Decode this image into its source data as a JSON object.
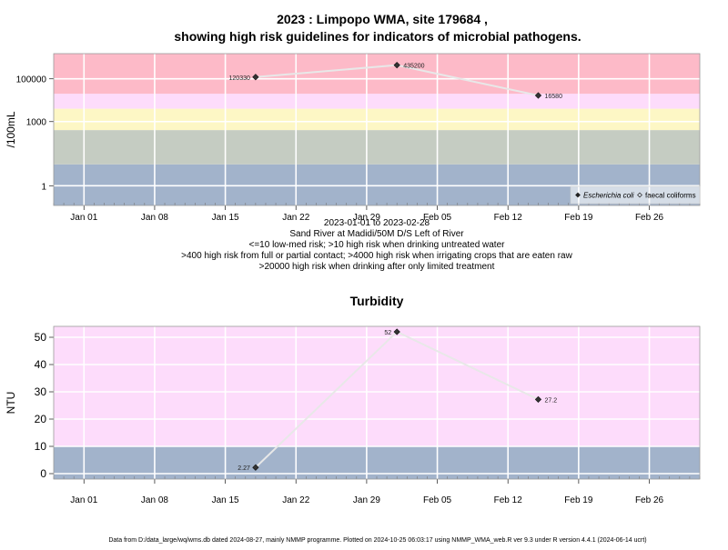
{
  "title_line1": "2023 : Limpopo WMA, site 179684 ,",
  "title_line2": "showing high risk guidelines for indicators of microbial pathogens.",
  "chart_data": [
    {
      "type": "line",
      "title": "",
      "ylabel": "/100mL",
      "yscale": "log10",
      "ylim": [
        0.12,
        1500000
      ],
      "yticks": [
        1,
        1000,
        100000
      ],
      "ytick_labels": [
        "1",
        "1000",
        "100000"
      ],
      "xlim": [
        "2022-12-29",
        "2023-03-03"
      ],
      "xticks": [
        "Jan 01",
        "Jan 08",
        "Jan 15",
        "Jan 22",
        "Jan 29",
        "Feb 05",
        "Feb 12",
        "Feb 19",
        "Feb 26"
      ],
      "xtick_dates": [
        "2023-01-01",
        "2023-01-08",
        "2023-01-15",
        "2023-01-22",
        "2023-01-29",
        "2023-02-05",
        "2023-02-12",
        "2023-02-19",
        "2023-02-26"
      ],
      "bands": [
        {
          "from": 0.12,
          "to": 10,
          "color": "#a2b3cb"
        },
        {
          "from": 10,
          "to": 400,
          "color": "#c5ccc2"
        },
        {
          "from": 400,
          "to": 4000,
          "color": "#fdf7c5"
        },
        {
          "from": 4000,
          "to": 20000,
          "color": "#fddcfb"
        },
        {
          "from": 20000,
          "to": 1500000,
          "color": "#fdbac8"
        }
      ],
      "series": [
        {
          "name": "Escherichia coli",
          "marker": "filled-diamond",
          "x": [
            "2023-01-18",
            "2023-02-01",
            "2023-02-15"
          ],
          "y": [
            120330,
            435200,
            16580
          ],
          "labels": [
            "120330",
            "435200",
            "16580"
          ]
        },
        {
          "name": "faecal coliforms",
          "marker": "open-diamond",
          "x": [],
          "y": []
        }
      ],
      "legend_position": "bottom-right",
      "captions": [
        "2023-01-01 to 2023-02-28",
        "Sand River at Madidi/50M D/S Left of River",
        "<=10 low-med risk; >10 high risk when drinking untreated water",
        ">400 high risk from full or partial contact; >4000 high risk when irrigating crops that are eaten raw",
        ">20000 high risk when drinking after only limited treatment"
      ]
    },
    {
      "type": "line",
      "title": "Turbidity",
      "ylabel": "NTU",
      "ylim": [
        -2,
        54
      ],
      "yticks": [
        0,
        10,
        20,
        30,
        40,
        50
      ],
      "ytick_labels": [
        "0",
        "10",
        "20",
        "30",
        "40",
        "50"
      ],
      "xlim": [
        "2022-12-29",
        "2023-03-03"
      ],
      "xticks": [
        "Jan 01",
        "Jan 08",
        "Jan 15",
        "Jan 22",
        "Jan 29",
        "Feb 05",
        "Feb 12",
        "Feb 19",
        "Feb 26"
      ],
      "xtick_dates": [
        "2023-01-01",
        "2023-01-08",
        "2023-01-15",
        "2023-01-22",
        "2023-01-29",
        "2023-02-05",
        "2023-02-12",
        "2023-02-19",
        "2023-02-26"
      ],
      "bands": [
        {
          "from": -2,
          "to": 10,
          "color": "#a2b3cb"
        },
        {
          "from": 10,
          "to": 54,
          "color": "#fddcfb"
        }
      ],
      "series": [
        {
          "name": "",
          "marker": "filled-diamond",
          "x": [
            "2023-01-18",
            "2023-02-01",
            "2023-02-15"
          ],
          "y": [
            2.27,
            52,
            27.2
          ],
          "labels": [
            "2.27",
            "52",
            "27.2"
          ]
        }
      ]
    }
  ],
  "footer": "Data from D:/data_large/wq/wms.db dated 2024-08-27, mainly NMMP programme. Plotted on 2024-10-25 06:03:17 using NMMP_WMA_web.R ver 9.3 under R version 4.4.1 (2024-06-14 ucrt)"
}
